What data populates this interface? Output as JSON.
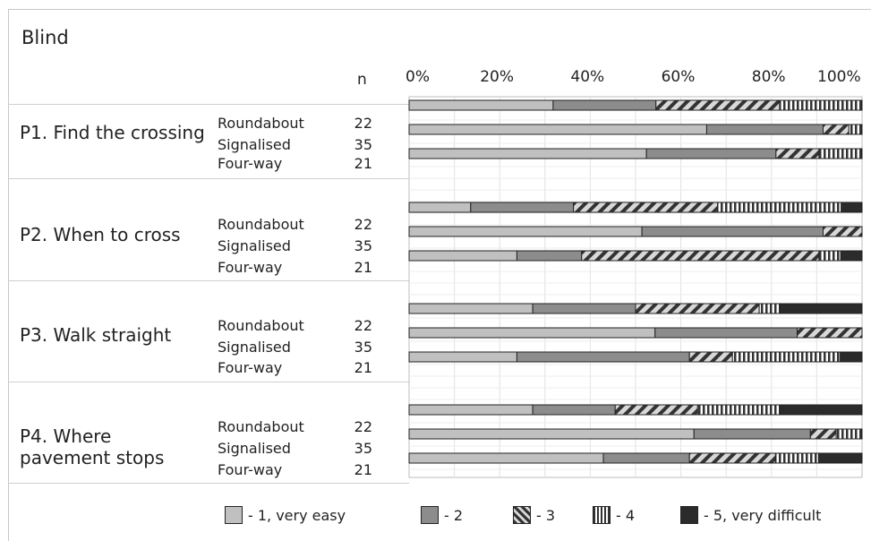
{
  "chart_data": {
    "type": "bar",
    "stacked": true,
    "orientation": "horizontal",
    "title": "Blind",
    "n_label": "n",
    "xlim": [
      0,
      100
    ],
    "x_ticks": [
      "0%",
      "20%",
      "40%",
      "60%",
      "80%",
      "100%"
    ],
    "grid": true,
    "legend_position": "bottom",
    "legend": [
      {
        "label": "- 1, very easy",
        "color": "#c0c0c0",
        "pattern": "solid"
      },
      {
        "label": "- 2",
        "color": "#8c8c8c",
        "pattern": "solid"
      },
      {
        "label": "- 3",
        "color": "#d8d8d8",
        "pattern": "diagonal"
      },
      {
        "label": "- 4",
        "color": "#ffffff",
        "pattern": "vertical"
      },
      {
        "label": "- 5, very difficult",
        "color": "#2b2b2b",
        "pattern": "solid"
      }
    ],
    "groups": [
      {
        "label": "P1. Find the crossing",
        "rows": [
          {
            "category": "Roundabout",
            "n": "22",
            "values": [
              31.8,
              22.7,
              27.3,
              18.2,
              0
            ]
          },
          {
            "category": "Signalised",
            "n": "35",
            "values": [
              65.7,
              25.7,
              5.7,
              2.9,
              0
            ]
          },
          {
            "category": "Four-way",
            "n": "21",
            "values": [
              52.4,
              28.6,
              9.5,
              9.5,
              0
            ]
          }
        ]
      },
      {
        "label": "P2. When to cross",
        "rows": [
          {
            "category": "Roundabout",
            "n": "22",
            "values": [
              13.6,
              22.7,
              31.8,
              27.3,
              4.6
            ]
          },
          {
            "category": "Signalised",
            "n": "35",
            "values": [
              51.4,
              40.0,
              8.6,
              0,
              0
            ]
          },
          {
            "category": "Four-way",
            "n": "21",
            "values": [
              23.8,
              14.3,
              52.4,
              4.8,
              4.7
            ]
          }
        ]
      },
      {
        "label": "P3. Walk straight",
        "rows": [
          {
            "category": "Roundabout",
            "n": "22",
            "values": [
              27.3,
              22.7,
              27.3,
              4.5,
              18.2
            ]
          },
          {
            "category": "Signalised",
            "n": "35",
            "values": [
              54.3,
              31.4,
              14.3,
              0,
              0
            ]
          },
          {
            "category": "Four-way",
            "n": "21",
            "values": [
              23.8,
              38.1,
              9.5,
              23.8,
              4.8
            ]
          }
        ]
      },
      {
        "label": "P4. Where pavement stops",
        "rows": [
          {
            "category": "Roundabout",
            "n": "22",
            "values": [
              27.3,
              18.2,
              18.2,
              18.2,
              18.1
            ]
          },
          {
            "category": "Signalised",
            "n": "35",
            "values": [
              62.9,
              25.7,
              5.7,
              5.7,
              0
            ]
          },
          {
            "category": "Four-way",
            "n": "21",
            "values": [
              42.9,
              19.0,
              19.0,
              9.5,
              9.6
            ]
          }
        ]
      }
    ]
  }
}
